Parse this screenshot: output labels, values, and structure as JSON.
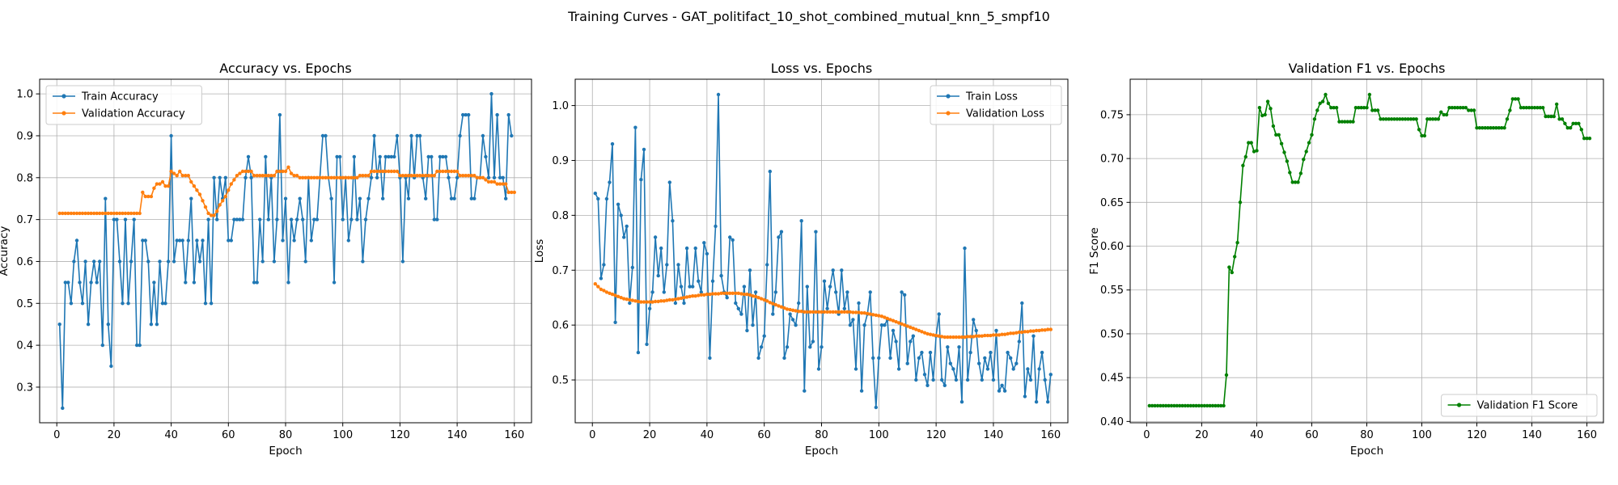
{
  "figure": {
    "suptitle": "Training Curves - GAT_politifact_10_shot_combined_mutual_knn_5_smpf10"
  },
  "chart_data": [
    {
      "type": "line",
      "title": "Accuracy vs. Epochs",
      "xlabel": "Epoch",
      "ylabel": "Accuracy",
      "xlim": [
        -6,
        166
      ],
      "ylim": [
        0.215,
        1.035
      ],
      "xticks": [
        0,
        20,
        40,
        60,
        80,
        100,
        120,
        140,
        160
      ],
      "yticks": [
        0.3,
        0.4,
        0.5,
        0.6,
        0.7,
        0.8,
        0.9,
        1.0
      ],
      "ytick_labels": [
        "0.3",
        "0.4",
        "0.5",
        "0.6",
        "0.7",
        "0.8",
        "0.9",
        "1.0"
      ],
      "grid": true,
      "legend_position": "upper left",
      "series": [
        {
          "name": "Train Accuracy",
          "color": "#1f77b4",
          "x_start": 1,
          "values": [
            0.45,
            0.25,
            0.55,
            0.55,
            0.5,
            0.6,
            0.65,
            0.55,
            0.5,
            0.6,
            0.45,
            0.55,
            0.6,
            0.55,
            0.6,
            0.4,
            0.75,
            0.45,
            0.35,
            0.7,
            0.7,
            0.6,
            0.5,
            0.7,
            0.5,
            0.6,
            0.7,
            0.4,
            0.4,
            0.65,
            0.65,
            0.6,
            0.45,
            0.55,
            0.45,
            0.6,
            0.5,
            0.5,
            0.6,
            0.9,
            0.6,
            0.65,
            0.65,
            0.65,
            0.55,
            0.65,
            0.75,
            0.55,
            0.65,
            0.6,
            0.65,
            0.5,
            0.7,
            0.5,
            0.8,
            0.7,
            0.8,
            0.75,
            0.8,
            0.65,
            0.65,
            0.7,
            0.7,
            0.7,
            0.7,
            0.8,
            0.85,
            0.8,
            0.55,
            0.55,
            0.7,
            0.6,
            0.85,
            0.7,
            0.8,
            0.6,
            0.7,
            0.95,
            0.65,
            0.75,
            0.55,
            0.7,
            0.65,
            0.7,
            0.75,
            0.7,
            0.6,
            0.8,
            0.65,
            0.7,
            0.7,
            0.8,
            0.9,
            0.9,
            0.8,
            0.75,
            0.55,
            0.85,
            0.85,
            0.7,
            0.8,
            0.65,
            0.7,
            0.85,
            0.7,
            0.75,
            0.6,
            0.7,
            0.75,
            0.8,
            0.9,
            0.8,
            0.85,
            0.75,
            0.85,
            0.85,
            0.85,
            0.85,
            0.9,
            0.8,
            0.6,
            0.8,
            0.75,
            0.9,
            0.8,
            0.9,
            0.9,
            0.8,
            0.75,
            0.85,
            0.85,
            0.7,
            0.7,
            0.85,
            0.85,
            0.85,
            0.8,
            0.75,
            0.75,
            0.8,
            0.9,
            0.95,
            0.95,
            0.95,
            0.75,
            0.75,
            0.8,
            0.8,
            0.9,
            0.85,
            0.8,
            1.0,
            0.8,
            0.95,
            0.8,
            0.8,
            0.75,
            0.95,
            0.9
          ]
        },
        {
          "name": "Validation Accuracy",
          "color": "#ff7f0e",
          "x_start": 1,
          "values": [
            0.715,
            0.715,
            0.715,
            0.715,
            0.715,
            0.715,
            0.715,
            0.715,
            0.715,
            0.715,
            0.715,
            0.715,
            0.715,
            0.715,
            0.715,
            0.715,
            0.715,
            0.715,
            0.715,
            0.715,
            0.715,
            0.715,
            0.715,
            0.715,
            0.715,
            0.715,
            0.715,
            0.715,
            0.715,
            0.765,
            0.755,
            0.755,
            0.755,
            0.775,
            0.785,
            0.785,
            0.79,
            0.78,
            0.78,
            0.815,
            0.81,
            0.805,
            0.815,
            0.805,
            0.805,
            0.805,
            0.79,
            0.78,
            0.77,
            0.76,
            0.745,
            0.73,
            0.715,
            0.71,
            0.71,
            0.72,
            0.735,
            0.745,
            0.755,
            0.77,
            0.785,
            0.795,
            0.805,
            0.81,
            0.815,
            0.815,
            0.815,
            0.815,
            0.805,
            0.805,
            0.805,
            0.805,
            0.805,
            0.805,
            0.805,
            0.805,
            0.815,
            0.815,
            0.815,
            0.815,
            0.825,
            0.81,
            0.805,
            0.805,
            0.8,
            0.8,
            0.8,
            0.8,
            0.8,
            0.8,
            0.8,
            0.8,
            0.8,
            0.8,
            0.8,
            0.8,
            0.8,
            0.8,
            0.8,
            0.8,
            0.8,
            0.8,
            0.8,
            0.8,
            0.8,
            0.805,
            0.805,
            0.805,
            0.805,
            0.815,
            0.815,
            0.815,
            0.815,
            0.815,
            0.815,
            0.815,
            0.815,
            0.815,
            0.815,
            0.805,
            0.805,
            0.805,
            0.805,
            0.805,
            0.805,
            0.805,
            0.805,
            0.805,
            0.805,
            0.805,
            0.805,
            0.805,
            0.815,
            0.815,
            0.815,
            0.815,
            0.815,
            0.815,
            0.815,
            0.815,
            0.805,
            0.805,
            0.805,
            0.805,
            0.805,
            0.805,
            0.8,
            0.8,
            0.8,
            0.795,
            0.79,
            0.79,
            0.79,
            0.785,
            0.785,
            0.785,
            0.785,
            0.765,
            0.765,
            0.765
          ]
        }
      ]
    },
    {
      "type": "line",
      "title": "Loss vs. Epochs",
      "xlabel": "Epoch",
      "ylabel": "Loss",
      "xlim": [
        -6,
        166
      ],
      "ylim": [
        0.422,
        1.048
      ],
      "xticks": [
        0,
        20,
        40,
        60,
        80,
        100,
        120,
        140,
        160
      ],
      "yticks": [
        0.5,
        0.6,
        0.7,
        0.8,
        0.9,
        1.0
      ],
      "ytick_labels": [
        "0.5",
        "0.6",
        "0.7",
        "0.8",
        "0.9",
        "1.0"
      ],
      "grid": true,
      "legend_position": "upper right",
      "series": [
        {
          "name": "Train Loss",
          "color": "#1f77b4",
          "x_start": 1,
          "values": [
            0.84,
            0.83,
            0.685,
            0.71,
            0.83,
            0.86,
            0.93,
            0.605,
            0.82,
            0.8,
            0.76,
            0.78,
            0.64,
            0.705,
            0.96,
            0.55,
            0.865,
            0.92,
            0.565,
            0.63,
            0.66,
            0.76,
            0.69,
            0.74,
            0.66,
            0.71,
            0.86,
            0.79,
            0.64,
            0.71,
            0.67,
            0.64,
            0.74,
            0.67,
            0.67,
            0.74,
            0.68,
            0.66,
            0.75,
            0.73,
            0.54,
            0.68,
            0.78,
            1.02,
            0.69,
            0.66,
            0.65,
            0.76,
            0.755,
            0.64,
            0.63,
            0.62,
            0.67,
            0.59,
            0.7,
            0.6,
            0.66,
            0.54,
            0.56,
            0.58,
            0.71,
            0.88,
            0.62,
            0.66,
            0.76,
            0.77,
            0.54,
            0.56,
            0.62,
            0.61,
            0.6,
            0.64,
            0.79,
            0.48,
            0.67,
            0.56,
            0.57,
            0.77,
            0.52,
            0.56,
            0.68,
            0.63,
            0.67,
            0.7,
            0.66,
            0.62,
            0.7,
            0.63,
            0.66,
            0.6,
            0.61,
            0.52,
            0.64,
            0.48,
            0.6,
            0.62,
            0.66,
            0.54,
            0.45,
            0.54,
            0.6,
            0.6,
            0.61,
            0.54,
            0.59,
            0.57,
            0.52,
            0.66,
            0.655,
            0.53,
            0.57,
            0.58,
            0.5,
            0.54,
            0.55,
            0.51,
            0.49,
            0.55,
            0.5,
            0.58,
            0.62,
            0.5,
            0.49,
            0.56,
            0.53,
            0.52,
            0.5,
            0.56,
            0.46,
            0.74,
            0.5,
            0.55,
            0.61,
            0.59,
            0.53,
            0.5,
            0.54,
            0.52,
            0.55,
            0.5,
            0.59,
            0.48,
            0.49,
            0.48,
            0.55,
            0.54,
            0.52,
            0.53,
            0.57,
            0.64,
            0.47,
            0.52,
            0.5,
            0.58,
            0.46,
            0.52,
            0.55,
            0.5,
            0.46,
            0.51
          ]
        },
        {
          "name": "Validation Loss",
          "color": "#ff7f0e",
          "x_start": 1,
          "values": [
            0.675,
            0.67,
            0.665,
            0.663,
            0.66,
            0.658,
            0.656,
            0.654,
            0.652,
            0.65,
            0.648,
            0.647,
            0.646,
            0.645,
            0.644,
            0.643,
            0.642,
            0.642,
            0.642,
            0.642,
            0.642,
            0.643,
            0.643,
            0.644,
            0.644,
            0.645,
            0.646,
            0.646,
            0.647,
            0.648,
            0.649,
            0.65,
            0.651,
            0.652,
            0.653,
            0.653,
            0.654,
            0.655,
            0.655,
            0.656,
            0.656,
            0.657,
            0.657,
            0.657,
            0.658,
            0.658,
            0.658,
            0.658,
            0.658,
            0.658,
            0.658,
            0.657,
            0.656,
            0.656,
            0.655,
            0.653,
            0.652,
            0.65,
            0.648,
            0.646,
            0.644,
            0.641,
            0.639,
            0.637,
            0.635,
            0.633,
            0.631,
            0.629,
            0.628,
            0.627,
            0.626,
            0.625,
            0.625,
            0.624,
            0.624,
            0.624,
            0.624,
            0.624,
            0.624,
            0.624,
            0.624,
            0.624,
            0.624,
            0.624,
            0.624,
            0.624,
            0.624,
            0.624,
            0.624,
            0.624,
            0.623,
            0.623,
            0.623,
            0.622,
            0.622,
            0.621,
            0.62,
            0.619,
            0.618,
            0.617,
            0.616,
            0.614,
            0.612,
            0.61,
            0.608,
            0.606,
            0.604,
            0.602,
            0.6,
            0.598,
            0.596,
            0.594,
            0.592,
            0.59,
            0.588,
            0.586,
            0.584,
            0.583,
            0.582,
            0.581,
            0.58,
            0.579,
            0.578,
            0.578,
            0.578,
            0.578,
            0.578,
            0.578,
            0.578,
            0.578,
            0.579,
            0.579,
            0.579,
            0.58,
            0.58,
            0.58,
            0.581,
            0.581,
            0.581,
            0.582,
            0.582,
            0.582,
            0.583,
            0.583,
            0.584,
            0.585,
            0.585,
            0.586,
            0.587,
            0.587,
            0.588,
            0.588,
            0.589,
            0.589,
            0.59,
            0.59,
            0.591,
            0.591,
            0.592,
            0.592
          ]
        }
      ]
    },
    {
      "type": "line",
      "title": "Validation F1 vs. Epochs",
      "xlabel": "Epoch",
      "ylabel": "F1 Score",
      "xlim": [
        -6,
        166
      ],
      "ylim": [
        0.3985,
        0.7905
      ],
      "xticks": [
        0,
        20,
        40,
        60,
        80,
        100,
        120,
        140,
        160
      ],
      "yticks": [
        0.4,
        0.45,
        0.5,
        0.55,
        0.6,
        0.65,
        0.7,
        0.75
      ],
      "ytick_labels": [
        "0.40",
        "0.45",
        "0.50",
        "0.55",
        "0.60",
        "0.65",
        "0.70",
        "0.75"
      ],
      "grid": true,
      "legend_position": "lower right",
      "series": [
        {
          "name": "Validation F1 Score",
          "color": "#008000",
          "x_start": 1,
          "values": [
            0.418,
            0.418,
            0.418,
            0.418,
            0.418,
            0.418,
            0.418,
            0.418,
            0.418,
            0.418,
            0.418,
            0.418,
            0.418,
            0.418,
            0.418,
            0.418,
            0.418,
            0.418,
            0.418,
            0.418,
            0.418,
            0.418,
            0.418,
            0.418,
            0.418,
            0.418,
            0.418,
            0.418,
            0.453,
            0.576,
            0.57,
            0.588,
            0.604,
            0.65,
            0.692,
            0.702,
            0.718,
            0.718,
            0.708,
            0.709,
            0.758,
            0.749,
            0.75,
            0.765,
            0.757,
            0.737,
            0.727,
            0.727,
            0.717,
            0.707,
            0.697,
            0.684,
            0.673,
            0.673,
            0.673,
            0.683,
            0.699,
            0.708,
            0.718,
            0.727,
            0.745,
            0.755,
            0.763,
            0.765,
            0.773,
            0.763,
            0.758,
            0.758,
            0.758,
            0.742,
            0.742,
            0.742,
            0.742,
            0.742,
            0.742,
            0.758,
            0.758,
            0.758,
            0.758,
            0.758,
            0.773,
            0.755,
            0.755,
            0.755,
            0.745,
            0.745,
            0.745,
            0.745,
            0.745,
            0.745,
            0.745,
            0.745,
            0.745,
            0.745,
            0.745,
            0.745,
            0.745,
            0.745,
            0.733,
            0.726,
            0.726,
            0.745,
            0.745,
            0.745,
            0.745,
            0.745,
            0.753,
            0.75,
            0.75,
            0.758,
            0.758,
            0.758,
            0.758,
            0.758,
            0.758,
            0.758,
            0.755,
            0.755,
            0.755,
            0.735,
            0.735,
            0.735,
            0.735,
            0.735,
            0.735,
            0.735,
            0.735,
            0.735,
            0.735,
            0.735,
            0.745,
            0.755,
            0.768,
            0.768,
            0.768,
            0.758,
            0.758,
            0.758,
            0.758,
            0.758,
            0.758,
            0.758,
            0.758,
            0.758,
            0.748,
            0.748,
            0.748,
            0.748,
            0.762,
            0.745,
            0.745,
            0.74,
            0.735,
            0.735,
            0.74,
            0.74,
            0.74,
            0.733,
            0.723,
            0.723,
            0.723
          ]
        }
      ]
    }
  ]
}
